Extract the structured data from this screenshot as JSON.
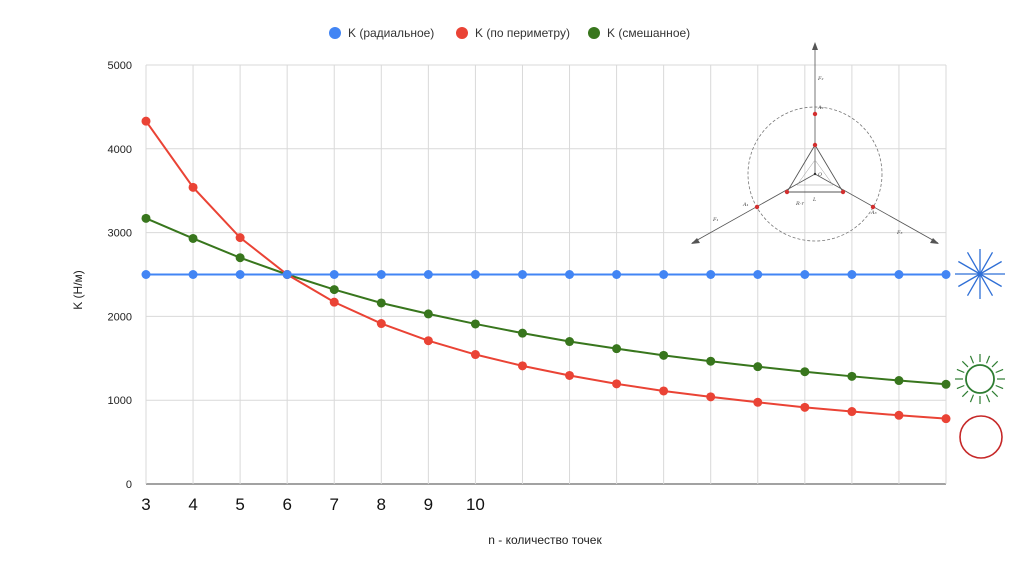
{
  "chart_data": {
    "type": "line",
    "xlabel": "n - количество точек",
    "ylabel": "K (Н/м)",
    "ylim": [
      0,
      5000
    ],
    "yticks": [
      0,
      1000,
      2000,
      3000,
      4000,
      5000
    ],
    "x": [
      3,
      4,
      5,
      6,
      7,
      8,
      9,
      10,
      11,
      12,
      13,
      14,
      15,
      16,
      17,
      18,
      19,
      20
    ],
    "xtick_labels": [
      "3",
      "4",
      "5",
      "6",
      "7",
      "8",
      "9",
      "10"
    ],
    "grid": true,
    "legend_position": "top",
    "series": [
      {
        "name": "K (радиальное)",
        "color": "#4285f4",
        "values": [
          2500,
          2500,
          2500,
          2500,
          2500,
          2500,
          2500,
          2500,
          2500,
          2500,
          2500,
          2500,
          2500,
          2500,
          2500,
          2500,
          2500,
          2500
        ]
      },
      {
        "name": "K (по периметру)",
        "color": "#ea4335",
        "values": [
          4330,
          3540,
          2940,
          2500,
          2170,
          1915,
          1710,
          1545,
          1410,
          1295,
          1195,
          1110,
          1040,
          975,
          915,
          865,
          820,
          780
        ]
      },
      {
        "name": "K (смешанное)",
        "color": "#38761d",
        "values": [
          3170,
          2930,
          2700,
          2500,
          2320,
          2160,
          2030,
          1910,
          1800,
          1700,
          1615,
          1535,
          1465,
          1400,
          1340,
          1285,
          1235,
          1190
        ]
      }
    ]
  },
  "diagram": {
    "labels": [
      "F₂",
      "A₂",
      "O",
      "A₁",
      "A₃",
      "R-r",
      "L",
      "F₁",
      "F₃"
    ]
  },
  "icons": {
    "blue": "radial-spokes-icon",
    "green": "ring-with-spokes-icon",
    "red": "circle-ring-icon"
  }
}
